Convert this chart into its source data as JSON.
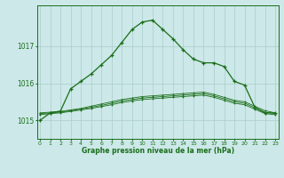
{
  "title": "Graphe pression niveau de la mer (hPa)",
  "bg_color": "#cce8e8",
  "grid_color": "#aacccc",
  "line_color": "#1a6e1a",
  "x_ticks": [
    0,
    1,
    2,
    3,
    4,
    5,
    6,
    7,
    8,
    9,
    10,
    11,
    12,
    13,
    14,
    15,
    16,
    17,
    18,
    19,
    20,
    21,
    22,
    23
  ],
  "y_ticks": [
    1015,
    1016,
    1017
  ],
  "ylim": [
    1014.5,
    1018.1
  ],
  "xlim": [
    -0.3,
    23.3
  ],
  "series1": [
    1015.0,
    1015.2,
    1015.25,
    1015.85,
    1016.05,
    1016.25,
    1016.5,
    1016.75,
    1017.1,
    1017.45,
    1017.65,
    1017.7,
    1017.45,
    1017.2,
    1016.9,
    1016.65,
    1016.55,
    1016.55,
    1016.45,
    1016.05,
    1015.95,
    1015.35,
    1015.2,
    1015.2
  ],
  "series2": [
    1015.2,
    1015.22,
    1015.24,
    1015.28,
    1015.32,
    1015.38,
    1015.44,
    1015.5,
    1015.56,
    1015.6,
    1015.64,
    1015.66,
    1015.68,
    1015.7,
    1015.72,
    1015.74,
    1015.76,
    1015.7,
    1015.62,
    1015.54,
    1015.5,
    1015.38,
    1015.26,
    1015.2
  ],
  "series3": [
    1015.18,
    1015.2,
    1015.22,
    1015.26,
    1015.3,
    1015.35,
    1015.4,
    1015.46,
    1015.52,
    1015.56,
    1015.6,
    1015.62,
    1015.64,
    1015.66,
    1015.68,
    1015.7,
    1015.72,
    1015.66,
    1015.58,
    1015.5,
    1015.46,
    1015.34,
    1015.22,
    1015.18
  ],
  "series4": [
    1015.15,
    1015.18,
    1015.2,
    1015.24,
    1015.28,
    1015.32,
    1015.37,
    1015.42,
    1015.48,
    1015.52,
    1015.56,
    1015.58,
    1015.6,
    1015.62,
    1015.64,
    1015.66,
    1015.68,
    1015.62,
    1015.54,
    1015.46,
    1015.42,
    1015.3,
    1015.18,
    1015.15
  ]
}
